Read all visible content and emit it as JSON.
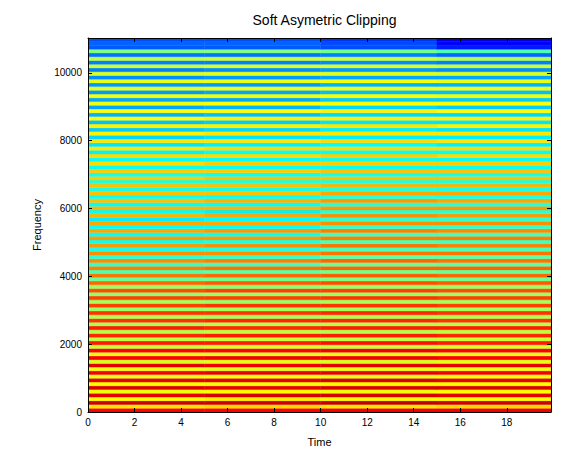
{
  "chart_data": {
    "type": "heatmap",
    "title": "Soft Asymetric Clipping",
    "xlabel": "Time",
    "ylabel": "Frequency",
    "xlim": [
      0,
      19.9
    ],
    "ylim": [
      0,
      11025
    ],
    "xticks": [
      0,
      2,
      4,
      6,
      8,
      10,
      12,
      14,
      16,
      18
    ],
    "yticks": [
      0,
      2000,
      4000,
      6000,
      8000,
      10000
    ],
    "grid": false,
    "zlim": [
      -80,
      0
    ],
    "x_bins": [
      0,
      5,
      10,
      15,
      19.9
    ],
    "y_bins": [
      0,
      110.25,
      220.5,
      330.75,
      441,
      551.25,
      661.5,
      771.75,
      882,
      992.25,
      1102.5,
      1212.75,
      1323,
      1433.25,
      1543.5,
      1653.75,
      1764,
      1874.25,
      1984.5,
      2094.75,
      2205,
      2315.25,
      2425.5,
      2535.75,
      2646,
      2756.25,
      2866.5,
      2976.75,
      3087,
      3197.25,
      3307.5,
      3417.75,
      3528,
      3638.25,
      3748.5,
      3858.75,
      3969,
      4079.25,
      4189.5,
      4299.75,
      4410,
      4520.25,
      4630.5,
      4740.75,
      4851,
      4961.25,
      5071.5,
      5181.75,
      5292,
      5402.25,
      5512.5,
      5622.75,
      5733,
      5843.25,
      5953.5,
      6063.75,
      6174,
      6284.25,
      6394.5,
      6504.75,
      6615,
      6725.25,
      6835.5,
      6945.75,
      7056,
      7166.25,
      7276.5,
      7386.75,
      7497,
      7607.25,
      7717.5,
      7827.75,
      7938,
      8048.25,
      8158.5,
      8268.75,
      8379,
      8489.25,
      8599.5,
      8709.75,
      8820,
      8930.25,
      9040.5,
      9150.75,
      9261,
      9371.25,
      9481.5,
      9591.75,
      9702,
      9812.25,
      9922.5,
      10032.75,
      10143,
      10253.25,
      10363.5,
      10473.75,
      10584,
      10694.25,
      10804.5,
      10914.75,
      11025
    ],
    "values": [
      [
        -10,
        -10,
        -9,
        -9
      ],
      [
        -28,
        -27,
        -28,
        -27
      ],
      [
        -6,
        -6,
        -5,
        -6
      ],
      [
        -30,
        -29,
        -30,
        -30
      ],
      [
        -8,
        -7,
        -7,
        -8
      ],
      [
        -31,
        -30,
        -31,
        -30
      ],
      [
        -7,
        -8,
        -7,
        -7
      ],
      [
        -30,
        -31,
        -30,
        -30
      ],
      [
        -8,
        -8,
        -7,
        -8
      ],
      [
        -32,
        -31,
        -32,
        -31
      ],
      [
        -9,
        -8,
        -8,
        -9
      ],
      [
        -31,
        -32,
        -31,
        -31
      ],
      [
        -8,
        -9,
        -8,
        -8
      ],
      [
        -33,
        -32,
        -33,
        -32
      ],
      [
        -10,
        -9,
        -9,
        -10
      ],
      [
        -32,
        -33,
        -32,
        -32
      ],
      [
        -10,
        -10,
        -9,
        -10
      ],
      [
        -34,
        -33,
        -34,
        -33
      ],
      [
        -12,
        -12,
        -11,
        -12
      ],
      [
        -35,
        -34,
        -35,
        -34
      ],
      [
        -13,
        -12,
        -12,
        -13
      ],
      [
        -36,
        -35,
        -36,
        -35
      ],
      [
        -12,
        -13,
        -12,
        -12
      ],
      [
        -37,
        -36,
        -36,
        -36
      ],
      [
        -14,
        -13,
        -13,
        -14
      ],
      [
        -36,
        -37,
        -36,
        -36
      ],
      [
        -14,
        -14,
        -13,
        -14
      ],
      [
        -38,
        -37,
        -37,
        -37
      ],
      [
        -15,
        -14,
        -14,
        -15
      ],
      [
        -37,
        -38,
        -37,
        -37
      ],
      [
        -15,
        -15,
        -14,
        -15
      ],
      [
        -39,
        -38,
        -38,
        -38
      ],
      [
        -16,
        -15,
        -15,
        -16
      ],
      [
        -38,
        -39,
        -38,
        -38
      ],
      [
        -18,
        -17,
        -16,
        -17
      ],
      [
        -42,
        -41,
        -40,
        -41
      ],
      [
        -19,
        -18,
        -17,
        -18
      ],
      [
        -44,
        -43,
        -41,
        -42
      ],
      [
        -20,
        -19,
        -18,
        -18
      ],
      [
        -46,
        -45,
        -42,
        -43
      ],
      [
        -21,
        -20,
        -18,
        -19
      ],
      [
        -47,
        -46,
        -43,
        -43
      ],
      [
        -21,
        -21,
        -19,
        -19
      ],
      [
        -48,
        -47,
        -44,
        -44
      ],
      [
        -22,
        -21,
        -19,
        -20
      ],
      [
        -49,
        -48,
        -44,
        -45
      ],
      [
        -22,
        -22,
        -20,
        -20
      ],
      [
        -50,
        -49,
        -45,
        -45
      ],
      [
        -23,
        -22,
        -20,
        -21
      ],
      [
        -50,
        -50,
        -46,
        -46
      ],
      [
        -23,
        -23,
        -21,
        -21
      ],
      [
        -51,
        -50,
        -46,
        -46
      ],
      [
        -24,
        -23,
        -21,
        -22
      ],
      [
        -50,
        -51,
        -47,
        -47
      ],
      [
        -24,
        -24,
        -22,
        -22
      ],
      [
        -50,
        -50,
        -47,
        -47
      ],
      [
        -25,
        -24,
        -22,
        -23
      ],
      [
        -49,
        -49,
        -47,
        -48
      ],
      [
        -25,
        -25,
        -23,
        -23
      ],
      [
        -48,
        -48,
        -47,
        -48
      ],
      [
        -25,
        -25,
        -24,
        -24
      ],
      [
        -48,
        -48,
        -48,
        -48
      ],
      [
        -26,
        -25,
        -25,
        -25
      ],
      [
        -48,
        -49,
        -48,
        -48
      ],
      [
        -26,
        -26,
        -25,
        -25
      ],
      [
        -49,
        -49,
        -49,
        -49
      ],
      [
        -27,
        -26,
        -26,
        -26
      ],
      [
        -50,
        -50,
        -49,
        -50
      ],
      [
        -27,
        -27,
        -26,
        -27
      ],
      [
        -51,
        -50,
        -50,
        -50
      ],
      [
        -28,
        -27,
        -27,
        -27
      ],
      [
        -52,
        -51,
        -50,
        -51
      ],
      [
        -28,
        -28,
        -27,
        -28
      ],
      [
        -53,
        -52,
        -51,
        -51
      ],
      [
        -29,
        -28,
        -28,
        -28
      ],
      [
        -54,
        -53,
        -51,
        -52
      ],
      [
        -29,
        -29,
        -28,
        -29
      ],
      [
        -55,
        -54,
        -52,
        -52
      ],
      [
        -30,
        -29,
        -29,
        -29
      ],
      [
        -56,
        -55,
        -53,
        -53
      ],
      [
        -30,
        -30,
        -29,
        -30
      ],
      [
        -57,
        -56,
        -53,
        -54
      ],
      [
        -31,
        -30,
        -30,
        -30
      ],
      [
        -57,
        -57,
        -54,
        -54
      ],
      [
        -31,
        -31,
        -30,
        -31
      ],
      [
        -58,
        -57,
        -55,
        -55
      ],
      [
        -32,
        -31,
        -31,
        -31
      ],
      [
        -58,
        -58,
        -56,
        -56
      ],
      [
        -32,
        -32,
        -31,
        -32
      ],
      [
        -59,
        -58,
        -57,
        -57
      ],
      [
        -33,
        -32,
        -32,
        -33
      ],
      [
        -60,
        -59,
        -58,
        -59
      ],
      [
        -34,
        -33,
        -33,
        -34
      ],
      [
        -60,
        -60,
        -59,
        -60
      ],
      [
        -35,
        -34,
        -34,
        -36
      ],
      [
        -61,
        -61,
        -60,
        -62
      ],
      [
        -40,
        -40,
        -41,
        -44
      ],
      [
        -63,
        -63,
        -64,
        -68
      ],
      [
        -62,
        -62,
        -64,
        -70
      ],
      [
        -64,
        -64,
        -66,
        -72
      ]
    ]
  }
}
